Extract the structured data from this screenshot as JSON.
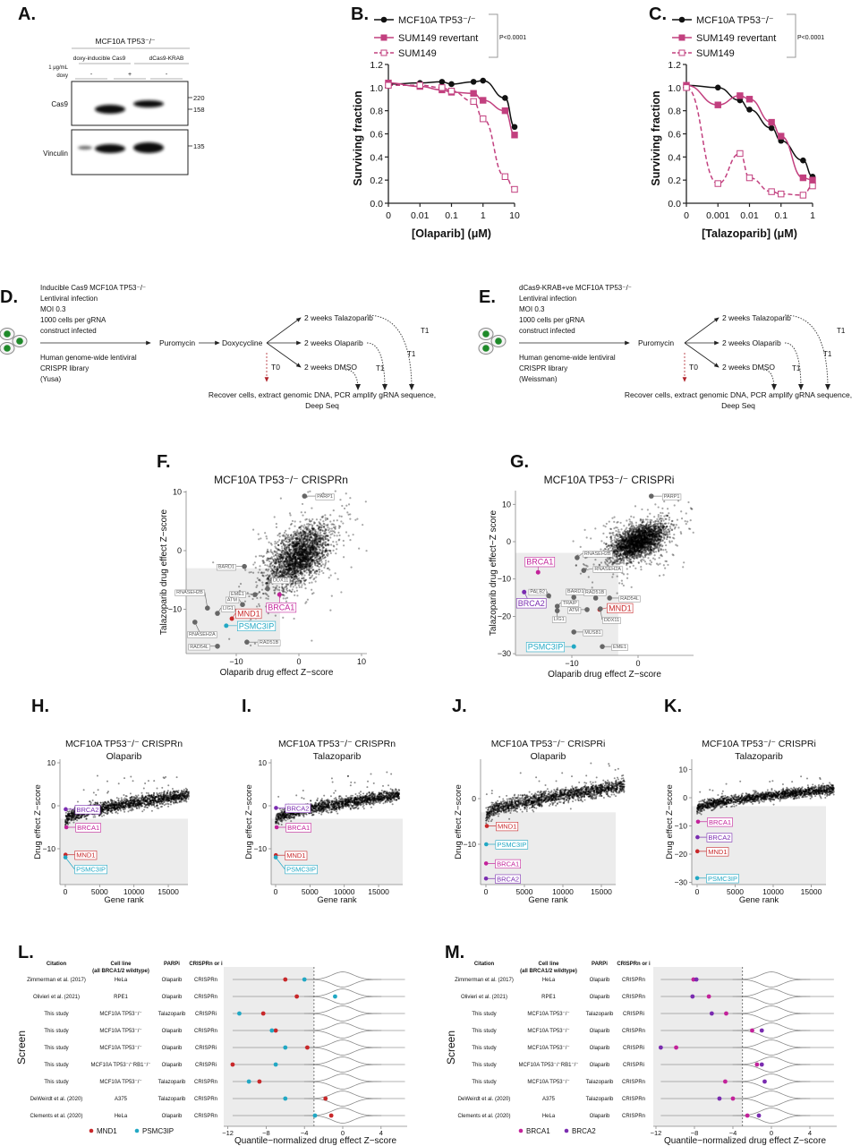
{
  "panels": {
    "A": "A.",
    "B": "B.",
    "C": "C.",
    "D": "D.",
    "E": "E.",
    "F": "F.",
    "G": "G.",
    "H": "H.",
    "I": "I.",
    "J": "J.",
    "K": "K.",
    "L": "L.",
    "M": "M."
  },
  "colors": {
    "mcf10a": "#111111",
    "sum149": "#c2407f",
    "mnd1": "#c8282a",
    "psmc3ip": "#22a8c4",
    "brca1": "#c3229a",
    "brca2": "#7a2cb0",
    "shade": "#ececec",
    "grey_gene": "#666666"
  },
  "blot": {
    "header": "MCF10A TP53⁻/⁻",
    "groups": [
      "doxy-inducible Cas9",
      "dCas9-KRAB"
    ],
    "treatment_label": [
      "1 μg/mL",
      "doxy"
    ],
    "lanes": [
      "-",
      "+",
      "-"
    ],
    "rows": [
      "Cas9",
      "Vinculin"
    ],
    "markers": [
      "220",
      "158",
      "135"
    ]
  },
  "schematic_d": {
    "top_lines": [
      "Inducible Cas9 MCF10A TP53⁻/⁻",
      "Lentiviral infection",
      "MOI 0.3",
      "1000 cells per gRNA",
      "construct infected"
    ],
    "bottom_lines": [
      "Human genome-wide lentiviral",
      "CRISPR library",
      "(Yusa)"
    ],
    "steps": [
      "Puromycin",
      "Doxycycline"
    ],
    "branches": [
      "2 weeks Talazoparib",
      "2 weeks Olaparib",
      "2 weeks DMSO"
    ],
    "t0": "T0",
    "t1": "T1",
    "final": [
      "Recover cells, extract genomic DNA, PCR amplify gRNA sequence,",
      "Deep Seq"
    ]
  },
  "schematic_e": {
    "top_lines": [
      "dCas9-KRAB+ve MCF10A TP53⁻/⁻",
      "Lentiviral infection",
      "MOI 0.3",
      "1000 cells per gRNA",
      "construct infected"
    ],
    "bottom_lines": [
      "Human genome-wide lentiviral",
      "CRISPR library",
      "(Weissman)"
    ],
    "steps": [
      "Puromycin"
    ],
    "branches": [
      "2 weeks Talazoparib",
      "2 weeks Olaparib",
      "2 weeks DMSO"
    ],
    "t0": "T0",
    "t1": "T1",
    "final": [
      "Recover cells, extract genomic DNA, PCR amplify gRNA sequence,",
      "Deep Seq"
    ]
  },
  "chart_data": [
    {
      "type": "line",
      "panel": "B",
      "xlabel": "[Olaparib] (μM)",
      "ylabel": "Surviving fraction",
      "x_scale": "log with 0 break",
      "xticks": [
        "0",
        "0.01",
        "0.1",
        "1",
        "10"
      ],
      "yticks": [
        "0.0",
        "0.2",
        "0.4",
        "0.6",
        "0.8",
        "1.0",
        "1.2"
      ],
      "ylim": [
        0,
        1.2
      ],
      "x": [
        0,
        0.01,
        0.05,
        0.1,
        0.5,
        1,
        5,
        10
      ],
      "series": [
        {
          "name": "MCF10A TP53⁻/⁻",
          "values": [
            1.03,
            1.04,
            1.05,
            1.03,
            1.05,
            1.06,
            0.91,
            0.66
          ],
          "color": "#111111",
          "marker": "filled-circle",
          "line": "solid"
        },
        {
          "name": "SUM149 revertant",
          "values": [
            1.04,
            1.01,
            0.98,
            0.96,
            0.95,
            0.89,
            0.8,
            0.59
          ],
          "color": "#c2407f",
          "marker": "filled-square",
          "line": "solid"
        },
        {
          "name": "SUM149",
          "values": [
            1.02,
            1.02,
            1.0,
            0.97,
            0.88,
            0.73,
            0.23,
            0.12
          ],
          "color": "#c2407f",
          "marker": "open-square",
          "line": "dashed"
        }
      ],
      "annotation": "P<0.0001"
    },
    {
      "type": "line",
      "panel": "C",
      "xlabel": "[Talazoparib] (μM)",
      "ylabel": "Surviving fraction",
      "x_scale": "log with 0 break",
      "xticks": [
        "0",
        "0.001",
        "0.01",
        "0.1",
        "1"
      ],
      "yticks": [
        "0.0",
        "0.2",
        "0.4",
        "0.6",
        "0.8",
        "1.0",
        "1.2"
      ],
      "ylim": [
        0,
        1.2
      ],
      "x": [
        0,
        0.001,
        0.005,
        0.01,
        0.05,
        0.1,
        0.5,
        1
      ],
      "series": [
        {
          "name": "MCF10A TP53⁻/⁻",
          "values": [
            1.02,
            1.0,
            0.89,
            0.81,
            0.65,
            0.54,
            0.37,
            0.23
          ],
          "color": "#111111",
          "marker": "filled-circle",
          "line": "solid"
        },
        {
          "name": "SUM149 revertant",
          "values": [
            1.02,
            0.85,
            0.93,
            0.9,
            0.7,
            0.58,
            0.22,
            0.2
          ],
          "color": "#c2407f",
          "marker": "filled-square",
          "line": "solid"
        },
        {
          "name": "SUM149",
          "values": [
            1.0,
            0.17,
            0.43,
            0.22,
            0.1,
            0.08,
            0.07,
            0.15
          ],
          "color": "#c2407f",
          "marker": "open-square",
          "line": "dashed"
        }
      ],
      "annotation": "P<0.0001"
    },
    {
      "type": "scatter",
      "panel": "F",
      "title": "MCF10A TP53⁻/⁻ CRISPRn",
      "xlabel": "Olaparib drug effect Z−score",
      "ylabel": "Talazoparib drug effect Z−score",
      "xticks": [
        "−10",
        "0",
        "10"
      ],
      "yticks": [
        "10",
        "0",
        "−10"
      ],
      "shaded_threshold": -3,
      "highlighted": [
        {
          "gene": "PARP1",
          "x": 0.9,
          "y": 9.3
        },
        {
          "gene": "BARD1",
          "x": -8.7,
          "y": -2.7
        },
        {
          "gene": "DDX11",
          "x": -5.0,
          "y": -6.5
        },
        {
          "gene": "EME1",
          "x": -7.0,
          "y": -7.5
        },
        {
          "gene": "RNASEH2B",
          "x": -14.6,
          "y": -9.8
        },
        {
          "gene": "ATM",
          "x": -9.0,
          "y": -9.2
        },
        {
          "gene": "LIG1",
          "x": -13.0,
          "y": -10.7
        },
        {
          "gene": "MND1",
          "x": -10.7,
          "y": -11.6
        },
        {
          "gene": "BRCA1",
          "x": -3.1,
          "y": -7.5
        },
        {
          "gene": "PSMC3IP",
          "x": -11.6,
          "y": -12.8
        },
        {
          "gene": "RNASEH2A",
          "x": -16.6,
          "y": -12.2
        },
        {
          "gene": "RAD54L",
          "x": -13.0,
          "y": -16.3
        },
        {
          "gene": "RAD51B",
          "x": -8.3,
          "y": -15.6
        }
      ]
    },
    {
      "type": "scatter",
      "panel": "G",
      "title": "MCF10A TP53⁻/⁻ CRISPRi",
      "xlabel": "Olaparib drug effect Z−score",
      "ylabel": "Talazoparib drug effect−Z score",
      "xticks": [
        "−10",
        "0"
      ],
      "yticks": [
        "10",
        "0",
        "−10",
        "−20",
        "−30"
      ],
      "shaded_threshold": -3,
      "highlighted": [
        {
          "gene": "PARP1",
          "x": 2.0,
          "y": 12.2
        },
        {
          "gene": "RNASEH2B",
          "x": -9.2,
          "y": -4.3
        },
        {
          "gene": "RNASEH2A",
          "x": -8.2,
          "y": -7.7
        },
        {
          "gene": "BRCA1",
          "x": -15.1,
          "y": -8.2
        },
        {
          "gene": "BRCA2",
          "x": -17.2,
          "y": -13.5
        },
        {
          "gene": "PALB2",
          "x": -13.5,
          "y": -14.5
        },
        {
          "gene": "BARD1",
          "x": -9.7,
          "y": -14.9
        },
        {
          "gene": "RAD51B",
          "x": -6.4,
          "y": -15.1
        },
        {
          "gene": "RAD54L",
          "x": -4.3,
          "y": -15.1
        },
        {
          "gene": "TRAIP",
          "x": -12.2,
          "y": -17.3
        },
        {
          "gene": "ATM",
          "x": -7.7,
          "y": -18.2
        },
        {
          "gene": "LIG1",
          "x": -12.2,
          "y": -18.5
        },
        {
          "gene": "MND1",
          "x": -5.8,
          "y": -18.2
        },
        {
          "gene": "DDX11",
          "x": -5.7,
          "y": -18.0
        },
        {
          "gene": "MUS81",
          "x": -9.7,
          "y": -24.2
        },
        {
          "gene": "PSMC3IP",
          "x": -9.7,
          "y": -28.1
        },
        {
          "gene": "EME1",
          "x": -5.4,
          "y": -28.1
        }
      ]
    },
    {
      "type": "scatter",
      "panel": "H",
      "title": "MCF10A TP53⁻/⁻ CRISPRn",
      "subtitle": "Olaparib",
      "xlabel": "Gene rank",
      "ylabel": "Drug effect Z−score",
      "xticks": [
        "0",
        "5000",
        "10000",
        "15000"
      ],
      "yticks": [
        "10",
        "0",
        "−10"
      ],
      "shaded_threshold": -3,
      "highlighted": [
        {
          "gene": "BRCA2",
          "rank": 60,
          "z": -0.8
        },
        {
          "gene": "BRCA1",
          "rank": 150,
          "z": -5.0
        },
        {
          "gene": "MND1",
          "rank": 30,
          "z": -11.4
        },
        {
          "gene": "PSMC3IP",
          "rank": 15,
          "z": -12.0
        }
      ]
    },
    {
      "type": "scatter",
      "panel": "I",
      "title": "MCF10A TP53⁻/⁻ CRISPRn",
      "subtitle": "Talazoparib",
      "xlabel": "Gene rank",
      "ylabel": "Drug effect Z−score",
      "xticks": [
        "0",
        "5000",
        "10000",
        "15000"
      ],
      "yticks": [
        "10",
        "0",
        "−10"
      ],
      "shaded_threshold": -3,
      "highlighted": [
        {
          "gene": "BRCA2",
          "rank": 60,
          "z": -0.5
        },
        {
          "gene": "BRCA1",
          "rank": 150,
          "z": -5.0
        },
        {
          "gene": "MND1",
          "rank": 30,
          "z": -11.5
        },
        {
          "gene": "PSMC3IP",
          "rank": 15,
          "z": -12.0
        }
      ]
    },
    {
      "type": "scatter",
      "panel": "J",
      "title": "MCF10A TP53⁻/⁻ CRISPRi",
      "subtitle": "Olaparib",
      "xlabel": "Gene rank",
      "ylabel": "Drug effect Z−score",
      "xticks": [
        "0",
        "5000",
        "10000",
        "15000"
      ],
      "yticks": [
        "0",
        "−10"
      ],
      "shaded_threshold": -3,
      "highlighted": [
        {
          "gene": "MND1",
          "rank": 120,
          "z": -6.0
        },
        {
          "gene": "PSMC3IP",
          "rank": 40,
          "z": -10.0
        },
        {
          "gene": "BRCA1",
          "rank": 20,
          "z": -14.2
        },
        {
          "gene": "BRCA2",
          "rank": 10,
          "z": -17.5
        }
      ]
    },
    {
      "type": "scatter",
      "panel": "K",
      "title": "MCF10A TP53⁻/⁻ CRISPRi",
      "subtitle": "Talazoparib",
      "xlabel": "Gene rank",
      "ylabel": "Drug effect Z−score",
      "xticks": [
        "0",
        "5000",
        "10000",
        "15000"
      ],
      "yticks": [
        "10",
        "0",
        "−10",
        "−20",
        "−30"
      ],
      "shaded_threshold": -3,
      "highlighted": [
        {
          "gene": "BRCA1",
          "rank": 120,
          "z": -8.5
        },
        {
          "gene": "BRCA2",
          "rank": 50,
          "z": -14.0
        },
        {
          "gene": "MND1",
          "rank": 30,
          "z": -19.0
        },
        {
          "gene": "PSMC3IP",
          "rank": 5,
          "z": -28.5
        }
      ]
    },
    {
      "type": "dot-violin",
      "panel": "L",
      "xlabel": "Quantile−normalized drug effect Z−score",
      "ylabel": "Screen",
      "columns": [
        "Citation",
        "Cell line",
        "(all BRCA1/2 wildtype)",
        "PARPi",
        "CRISPRn or i"
      ],
      "rows": [
        {
          "citation": "Zimmerman et al. (2017)",
          "cell_line": "HeLa",
          "parpi": "Olaparib",
          "crispr": "CRISPRn"
        },
        {
          "citation": "Olivieri et al. (2021)",
          "cell_line": "RPE1",
          "parpi": "Olaparib",
          "crispr": "CRISPRn"
        },
        {
          "citation": "This study",
          "cell_line": "MCF10A TP53⁻/⁻",
          "parpi": "Talazoparib",
          "crispr": "CRISPRi"
        },
        {
          "citation": "This study",
          "cell_line": "MCF10A TP53⁻/⁻",
          "parpi": "Olaparib",
          "crispr": "CRISPRn"
        },
        {
          "citation": "This study",
          "cell_line": "MCF10A TP53⁻/⁻",
          "parpi": "Olaparib",
          "crispr": "CRISPRi"
        },
        {
          "citation": "This study",
          "cell_line": "MCF10A TP53⁻/⁻RB1⁻/⁻",
          "parpi": "Olaparib",
          "crispr": "CRISPRi"
        },
        {
          "citation": "This study",
          "cell_line": "MCF10A TP53⁻/⁻",
          "parpi": "Talazoparib",
          "crispr": "CRISPRn"
        },
        {
          "citation": "DeWeirdt et al. (2020)",
          "cell_line": "A375",
          "parpi": "Talazoparib",
          "crispr": "CRISPRn"
        },
        {
          "citation": "Clements et al. (2020)",
          "cell_line": "HeLa",
          "parpi": "Olaparib",
          "crispr": "CRISPRn"
        }
      ],
      "xticks": [
        "−12",
        "−8",
        "−4",
        "0",
        "4"
      ],
      "xtick_values": [
        -12,
        -8,
        -4,
        0,
        4
      ],
      "threshold": -3,
      "series": [
        {
          "name": "MND1",
          "color": "#c8282a",
          "values": [
            -6.0,
            -4.8,
            -8.3,
            -7.0,
            -3.7,
            -11.5,
            -8.7,
            -1.8,
            -1.2
          ]
        },
        {
          "name": "PSMC3IP",
          "color": "#22a8c4",
          "values": [
            -4.0,
            -0.8,
            -10.8,
            -7.4,
            -6.0,
            -7.0,
            -9.8,
            -6.0,
            -2.9
          ]
        }
      ]
    },
    {
      "type": "dot-violin",
      "panel": "M",
      "xlabel": "Quantile−normalized drug effect Z−score",
      "ylabel": "Screen",
      "columns": [
        "Citation",
        "Cell line",
        "(all BRCA1/2 wildtype)",
        "PARPi",
        "CRISPRn or i"
      ],
      "rows": [
        {
          "citation": "Zimmerman et al. (2017)",
          "cell_line": "HeLa",
          "parpi": "Olaparib",
          "crispr": "CRISPRn"
        },
        {
          "citation": "Olivieri et al. (2021)",
          "cell_line": "RPE1",
          "parpi": "Olaparib",
          "crispr": "CRISPRn"
        },
        {
          "citation": "This study",
          "cell_line": "MCF10A TP53⁻/⁻",
          "parpi": "Talazoparib",
          "crispr": "CRISPRi"
        },
        {
          "citation": "This study",
          "cell_line": "MCF10A TP53⁻/⁻",
          "parpi": "Olaparib",
          "crispr": "CRISPRn"
        },
        {
          "citation": "This study",
          "cell_line": "MCF10A TP53⁻/⁻",
          "parpi": "Olaparib",
          "crispr": "CRISPRi"
        },
        {
          "citation": "This study",
          "cell_line": "MCF10A TP53⁻/⁻RB1⁻/⁻",
          "parpi": "Olaparib",
          "crispr": "CRISPRi"
        },
        {
          "citation": "This study",
          "cell_line": "MCF10A TP53⁻/⁻",
          "parpi": "Talazoparib",
          "crispr": "CRISPRn"
        },
        {
          "citation": "DeWeirdt et al. (2020)",
          "cell_line": "A375",
          "parpi": "Talazoparib",
          "crispr": "CRISPRn"
        },
        {
          "citation": "Clements et al. (2020)",
          "cell_line": "HeLa",
          "parpi": "Olaparib",
          "crispr": "CRISPRn"
        }
      ],
      "xticks": [
        "−12",
        "−8",
        "−4",
        "0",
        "4"
      ],
      "xtick_values": [
        -12,
        -8,
        -4,
        0,
        4
      ],
      "threshold": -3,
      "series": [
        {
          "name": "BRCA1",
          "color": "#c3229a",
          "values": [
            -8.1,
            -6.5,
            -4.7,
            -2.0,
            -9.9,
            -1.5,
            -4.8,
            -4.0,
            -2.5
          ]
        },
        {
          "name": "BRCA2",
          "color": "#7a2cb0",
          "values": [
            -7.8,
            -8.2,
            -6.2,
            -1.0,
            -11.5,
            -1.0,
            -0.7,
            -5.4,
            -1.3
          ]
        }
      ]
    }
  ]
}
